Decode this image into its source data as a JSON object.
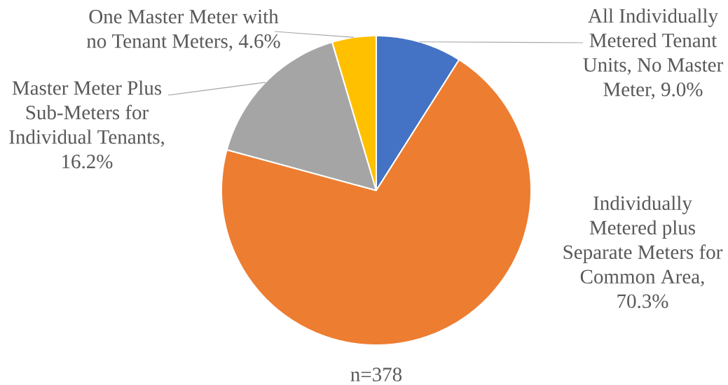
{
  "chart_data": {
    "type": "pie",
    "categories": [
      null,
      null,
      null,
      null
    ],
    "values": [
      9.0,
      70.3,
      16.2,
      4.6
    ],
    "value_labels": [
      "All Individually Metered Tenant Units, No Master Meter, 9.0%",
      "Individually Metered plus Separate Meters for Common Area, 70.3%",
      "Master Meter Plus Sub-Meters for Individual Tenants, 16.2%",
      "One Master Meter with no Tenant Meters, 4.6%"
    ],
    "colors": [
      "#4472c4",
      "#ed7d31",
      "#a5a5a5",
      "#ffc000"
    ],
    "annotations": [
      "n=378"
    ]
  }
}
